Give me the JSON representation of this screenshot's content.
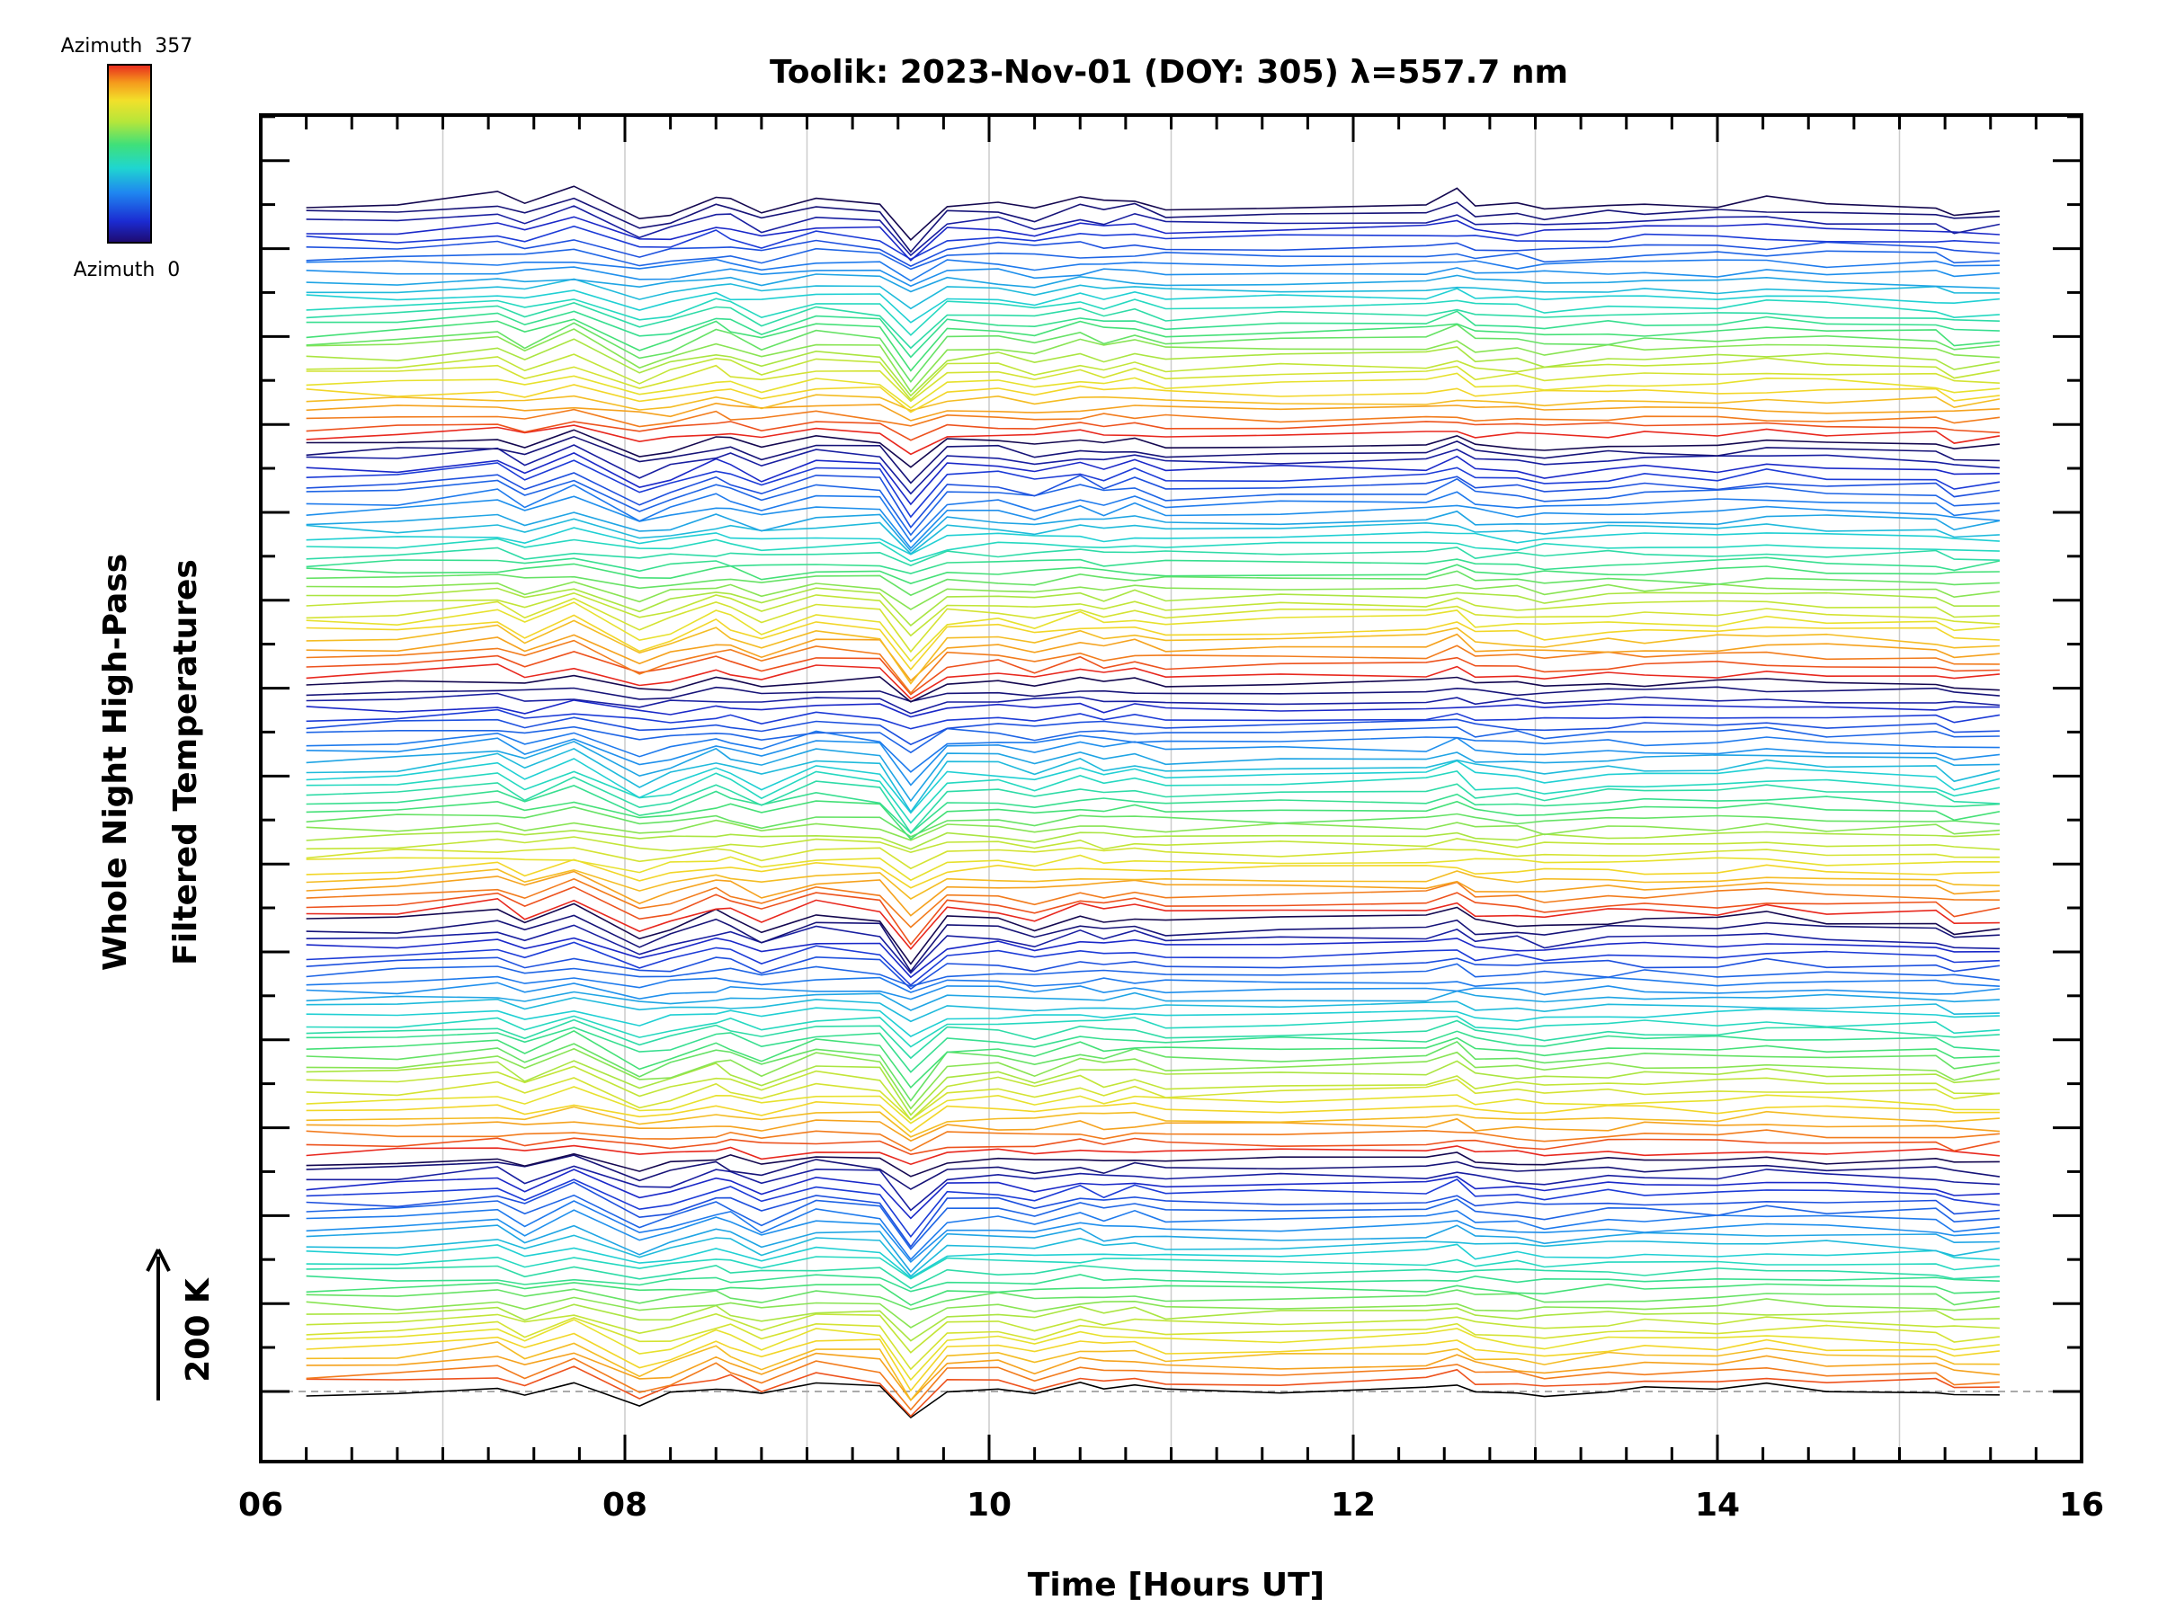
{
  "chart_data": {
    "type": "line",
    "title": "Toolik: 2023-Nov-01 (DOY: 305) λ=557.7 nm",
    "xlabel": "Time [Hours UT]",
    "ylabel_lines": [
      "Whole Night High-Pass",
      "Filtered Temperatures"
    ],
    "xlim": [
      6,
      16
    ],
    "x_tick_labels": [
      "06",
      "08",
      "10",
      "12",
      "14",
      "16"
    ],
    "x_tick_values": [
      6,
      8,
      10,
      12,
      14,
      16
    ],
    "vertical_grid_hours": [
      7,
      8,
      9,
      10,
      11,
      12,
      13,
      14,
      15
    ],
    "scale_bar": {
      "label": "200 K",
      "arrow": "up"
    },
    "colorbar": {
      "top_label": "Azimuth  357",
      "bottom_label": "Azimuth  0",
      "colormap": "rainbow",
      "azimuth_range": [
        0,
        357
      ]
    },
    "baseline": "dashed-gray",
    "series_count": 140,
    "time_hours": [
      6.25,
      6.75,
      7.3,
      7.45,
      7.72,
      8.08,
      8.25,
      8.5,
      8.58,
      8.75,
      9.05,
      9.4,
      9.57,
      9.77,
      10.05,
      10.25,
      10.5,
      10.63,
      10.8,
      10.97,
      11.6,
      12.4,
      12.57,
      12.67,
      12.9,
      13.05,
      13.4,
      13.6,
      14.0,
      14.27,
      14.6,
      15.2,
      15.3,
      15.55
    ],
    "signal_profile": [
      0.0,
      0.05,
      0.45,
      -0.1,
      0.7,
      -0.65,
      -0.3,
      0.35,
      0.2,
      -0.35,
      0.4,
      0.2,
      -1.6,
      0.1,
      0.15,
      -0.2,
      0.3,
      0.05,
      0.25,
      -0.05,
      0.05,
      0.15,
      0.5,
      0.0,
      -0.05,
      -0.2,
      0.05,
      0.05,
      0.05,
      0.25,
      0.1,
      0.0,
      -0.35,
      -0.25
    ],
    "series_azimuths": "azimuth cycles 0 to 357 across groups of 28 stacked traces, repeated 5 times",
    "bottom_trace_color": "#000000"
  },
  "colors": {
    "axis": "#000000",
    "grid": "#cccccc",
    "baseline": "#aaaaaa"
  }
}
